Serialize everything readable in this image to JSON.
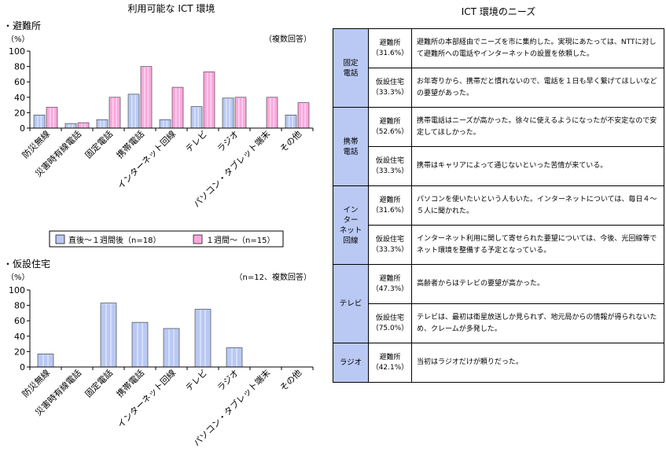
{
  "left_title": "利用可能な ICT 環境",
  "right_title": "ICT 環境のニーズ",
  "legend": {
    "items": [
      {
        "label": "直後～１週間後（n=18）",
        "color": "#b9c9f3"
      },
      {
        "label": "１週間～（n=15）",
        "color": "#f9a9de"
      }
    ]
  },
  "chart_data": [
    {
      "type": "bar",
      "section_label": "・避難所",
      "ylabel": "（%）",
      "note": "（複数回答）",
      "ylim": [
        0,
        100
      ],
      "yticks": [
        0,
        20,
        40,
        60,
        80,
        100
      ],
      "categories": [
        "防災無線",
        "災害時有線電話",
        "固定電話",
        "携帯電話",
        "インターネット回線",
        "テレビ",
        "ラジオ",
        "パソコン・タブレット端末",
        "その他"
      ],
      "series": [
        {
          "name": "直後～１週間後（n=18）",
          "color": "#b9c9f3",
          "values": [
            17,
            6,
            11,
            44,
            11,
            28,
            39,
            0,
            17
          ]
        },
        {
          "name": "１週間～（n=15）",
          "color": "#f9a9de",
          "values": [
            27,
            7,
            40,
            80,
            53,
            73,
            40,
            40,
            33
          ]
        }
      ]
    },
    {
      "type": "bar",
      "section_label": "・仮設住宅",
      "ylabel": "（%）",
      "note": "（n=12、複数回答）",
      "ylim": [
        0,
        100
      ],
      "yticks": [
        0,
        20,
        40,
        60,
        80,
        100
      ],
      "categories": [
        "防災無線",
        "災害時有線電話",
        "固定電話",
        "携帯電話",
        "インターネット回線",
        "テレビ",
        "ラジオ",
        "パソコン・タブレット端末",
        "その他"
      ],
      "series": [
        {
          "name": "",
          "color": "#b9c9f3",
          "values": [
            17,
            0,
            83,
            58,
            50,
            75,
            25,
            0,
            0
          ]
        }
      ]
    }
  ],
  "table": {
    "groups": [
      {
        "category": "固定電話",
        "category_lines": [
          "固定",
          "電話"
        ],
        "rows": [
          {
            "facility": "避難所",
            "pct": "（31.6%）",
            "comment": "避難所の本部経由でニーズを市に集約した。実現にあたっては、NTTに対して避難所への電話やインターネットの設置を依頼した。"
          },
          {
            "facility": "仮設住宅",
            "pct": "（33.3%）",
            "comment": "お年寄りから、携帯だと慣れないので、電話を１日も早く繋げてほしいなどの要望があった。"
          }
        ]
      },
      {
        "category": "携帯電話",
        "category_lines": [
          "携帯",
          "電話"
        ],
        "rows": [
          {
            "facility": "避難所",
            "pct": "（52.6%）",
            "comment": "携帯電話はニーズが高かった。徐々に使えるようになったが不安定なので安定してほしかった。"
          },
          {
            "facility": "仮設住宅",
            "pct": "（33.3%）",
            "comment": "携帯はキャリアによって通じないといった苦情が来ている。"
          }
        ]
      },
      {
        "category": "インターネット回線",
        "category_lines": [
          "イン",
          "ター",
          "ネット",
          "回線"
        ],
        "rows": [
          {
            "facility": "避難所",
            "pct": "（31.6%）",
            "comment": "パソコンを使いたいという人もいた。インターネットについては、毎日４～５人に聞かれた。"
          },
          {
            "facility": "仮設住宅",
            "pct": "（33.3%）",
            "comment": "インターネット利用に関して寄せられた要望については、今後、光回線等でネット環境を整備する予定となっている。"
          }
        ]
      },
      {
        "category": "テレビ",
        "category_lines": [
          "テレビ"
        ],
        "rows": [
          {
            "facility": "避難所",
            "pct": "（47.3%）",
            "comment": "高齢者からはテレビの要望が高かった。"
          },
          {
            "facility": "仮設住宅",
            "pct": "（75.0%）",
            "comment": "テレビは、最初は衛星放送しか見られず、地元局からの情報が得られないため、クレームが多発した。"
          }
        ]
      },
      {
        "category": "ラジオ",
        "category_lines": [
          "ラジオ"
        ],
        "rows": [
          {
            "facility": "避難所",
            "pct": "（42.1%）",
            "comment": "当初はラジオだけが頼りだった。"
          }
        ]
      }
    ]
  }
}
